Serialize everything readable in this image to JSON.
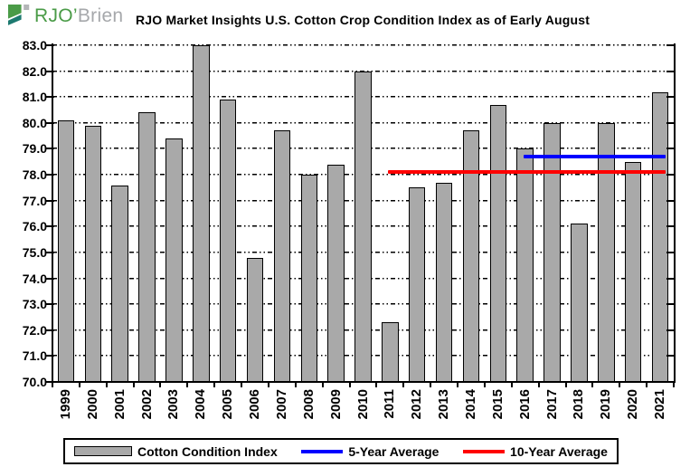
{
  "logo": {
    "rjo": "RJO",
    "apostrophe": "’",
    "brien": "Brien",
    "green": "#4a9b47",
    "teal": "#1d7a70",
    "gray": "#a6a8ab"
  },
  "title": "RJO Market Insights U.S. Cotton Crop Condition Index as of Early August",
  "chart_data": {
    "type": "bar",
    "title": "RJO Market Insights U.S. Cotton Crop Condition Index as of Early August",
    "categories": [
      "1999",
      "2000",
      "2001",
      "2002",
      "2003",
      "2004",
      "2005",
      "2006",
      "2007",
      "2008",
      "2009",
      "2010",
      "2011",
      "2012",
      "2013",
      "2014",
      "2015",
      "2016",
      "2017",
      "2018",
      "2019",
      "2020",
      "2021"
    ],
    "series": [
      {
        "name": "Cotton Condition Index",
        "values": [
          80.1,
          79.9,
          77.6,
          80.4,
          79.4,
          83.0,
          80.9,
          74.8,
          79.7,
          78.0,
          78.4,
          82.0,
          72.3,
          77.5,
          77.7,
          79.7,
          80.7,
          79.0,
          80.0,
          76.1,
          80.0,
          78.5,
          81.2
        ]
      }
    ],
    "ylim": [
      70.0,
      83.0
    ],
    "y_tick_step": 1.0,
    "y_tick_labels": [
      "83.0",
      "82.0",
      "81.0",
      "80.0",
      "79.0",
      "78.0",
      "77.0",
      "76.0",
      "75.0",
      "74.0",
      "73.0",
      "72.0",
      "71.0",
      "70.0"
    ],
    "xlabel": "",
    "ylabel": "",
    "grid": "horizontal-dashed",
    "bar_color": "#a9a9a9",
    "bar_border_color": "#000000",
    "reference_lines": [
      {
        "name": "5-Year Average",
        "value": 78.7,
        "color": "#0000ff",
        "start_category": "2016",
        "end_category": "2021"
      },
      {
        "name": "10-Year Average",
        "value": 78.1,
        "color": "#ff0000",
        "start_category": "2011",
        "end_category": "2021"
      }
    ],
    "legend": {
      "position": "bottom",
      "items": [
        {
          "label": "Cotton Condition Index",
          "swatch": "bar",
          "color": "#a9a9a9"
        },
        {
          "label": "5-Year Average",
          "swatch": "line",
          "color": "#0000ff"
        },
        {
          "label": "10-Year Average",
          "swatch": "line",
          "color": "#ff0000"
        }
      ]
    }
  }
}
